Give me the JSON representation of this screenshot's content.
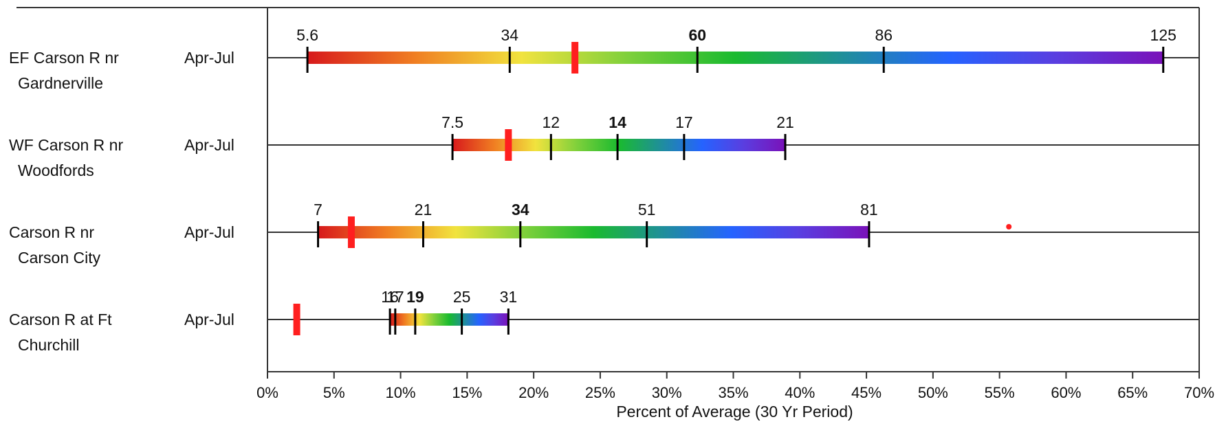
{
  "chart_data": {
    "type": "range-bar",
    "title": "",
    "xlabel": "Percent of Average (30 Yr Period)",
    "ylabel": "",
    "xlim": [
      0,
      70
    ],
    "x_ticks": [
      0,
      5,
      10,
      15,
      20,
      25,
      30,
      35,
      40,
      45,
      50,
      55,
      60,
      65,
      70
    ],
    "x_tick_labels": [
      "0%",
      "5%",
      "10%",
      "15%",
      "20%",
      "25%",
      "30%",
      "35%",
      "40%",
      "45%",
      "50%",
      "55%",
      "60%",
      "65%",
      "70%"
    ],
    "grid": false,
    "colors": {
      "gradient": [
        "#d7191c",
        "#f07e22",
        "#f1e33e",
        "#7ed03b",
        "#1aba2f",
        "#1f8f9a",
        "#2563ff",
        "#5a3ee0",
        "#7a12b9"
      ],
      "current_marker": "#ff1f1f",
      "tick": "#000000",
      "axis": "#333333"
    },
    "rows": [
      {
        "station": [
          "EF Carson R nr",
          "Gardnerville"
        ],
        "period": "Apr-Jul",
        "values": [
          5.6,
          34,
          60,
          86,
          125
        ],
        "value_labels": [
          "5.6",
          "34",
          "60",
          "86",
          "125"
        ],
        "percent": [
          3,
          18.2,
          32.3,
          46.3,
          67.3
        ],
        "current_percent": 23.1
      },
      {
        "station": [
          "WF Carson R nr",
          "Woodfords"
        ],
        "period": "Apr-Jul",
        "values": [
          7.5,
          12,
          14,
          17,
          21
        ],
        "value_labels": [
          "7.5",
          "12",
          "14",
          "17",
          "21"
        ],
        "percent": [
          13.9,
          21.3,
          26.3,
          31.3,
          38.9
        ],
        "current_percent": 18.1
      },
      {
        "station": [
          "Carson R nr",
          "Carson City"
        ],
        "period": "Apr-Jul",
        "values": [
          7,
          21,
          34,
          51,
          81
        ],
        "value_labels": [
          "7",
          "21",
          "34",
          "51",
          "81"
        ],
        "percent": [
          3.8,
          11.7,
          19,
          28.5,
          45.2
        ],
        "current_percent": 6.3,
        "extra_point_percent": 55.7
      },
      {
        "station": [
          "Carson R at Ft",
          "Churchill"
        ],
        "period": "Apr-Jul",
        "values": [
          16,
          17,
          19,
          25,
          31
        ],
        "value_labels": [
          "16",
          "17",
          "19",
          "25",
          "31"
        ],
        "percent": [
          9.2,
          9.6,
          11.1,
          14.6,
          18.1
        ],
        "current_percent": 2.2
      }
    ]
  }
}
